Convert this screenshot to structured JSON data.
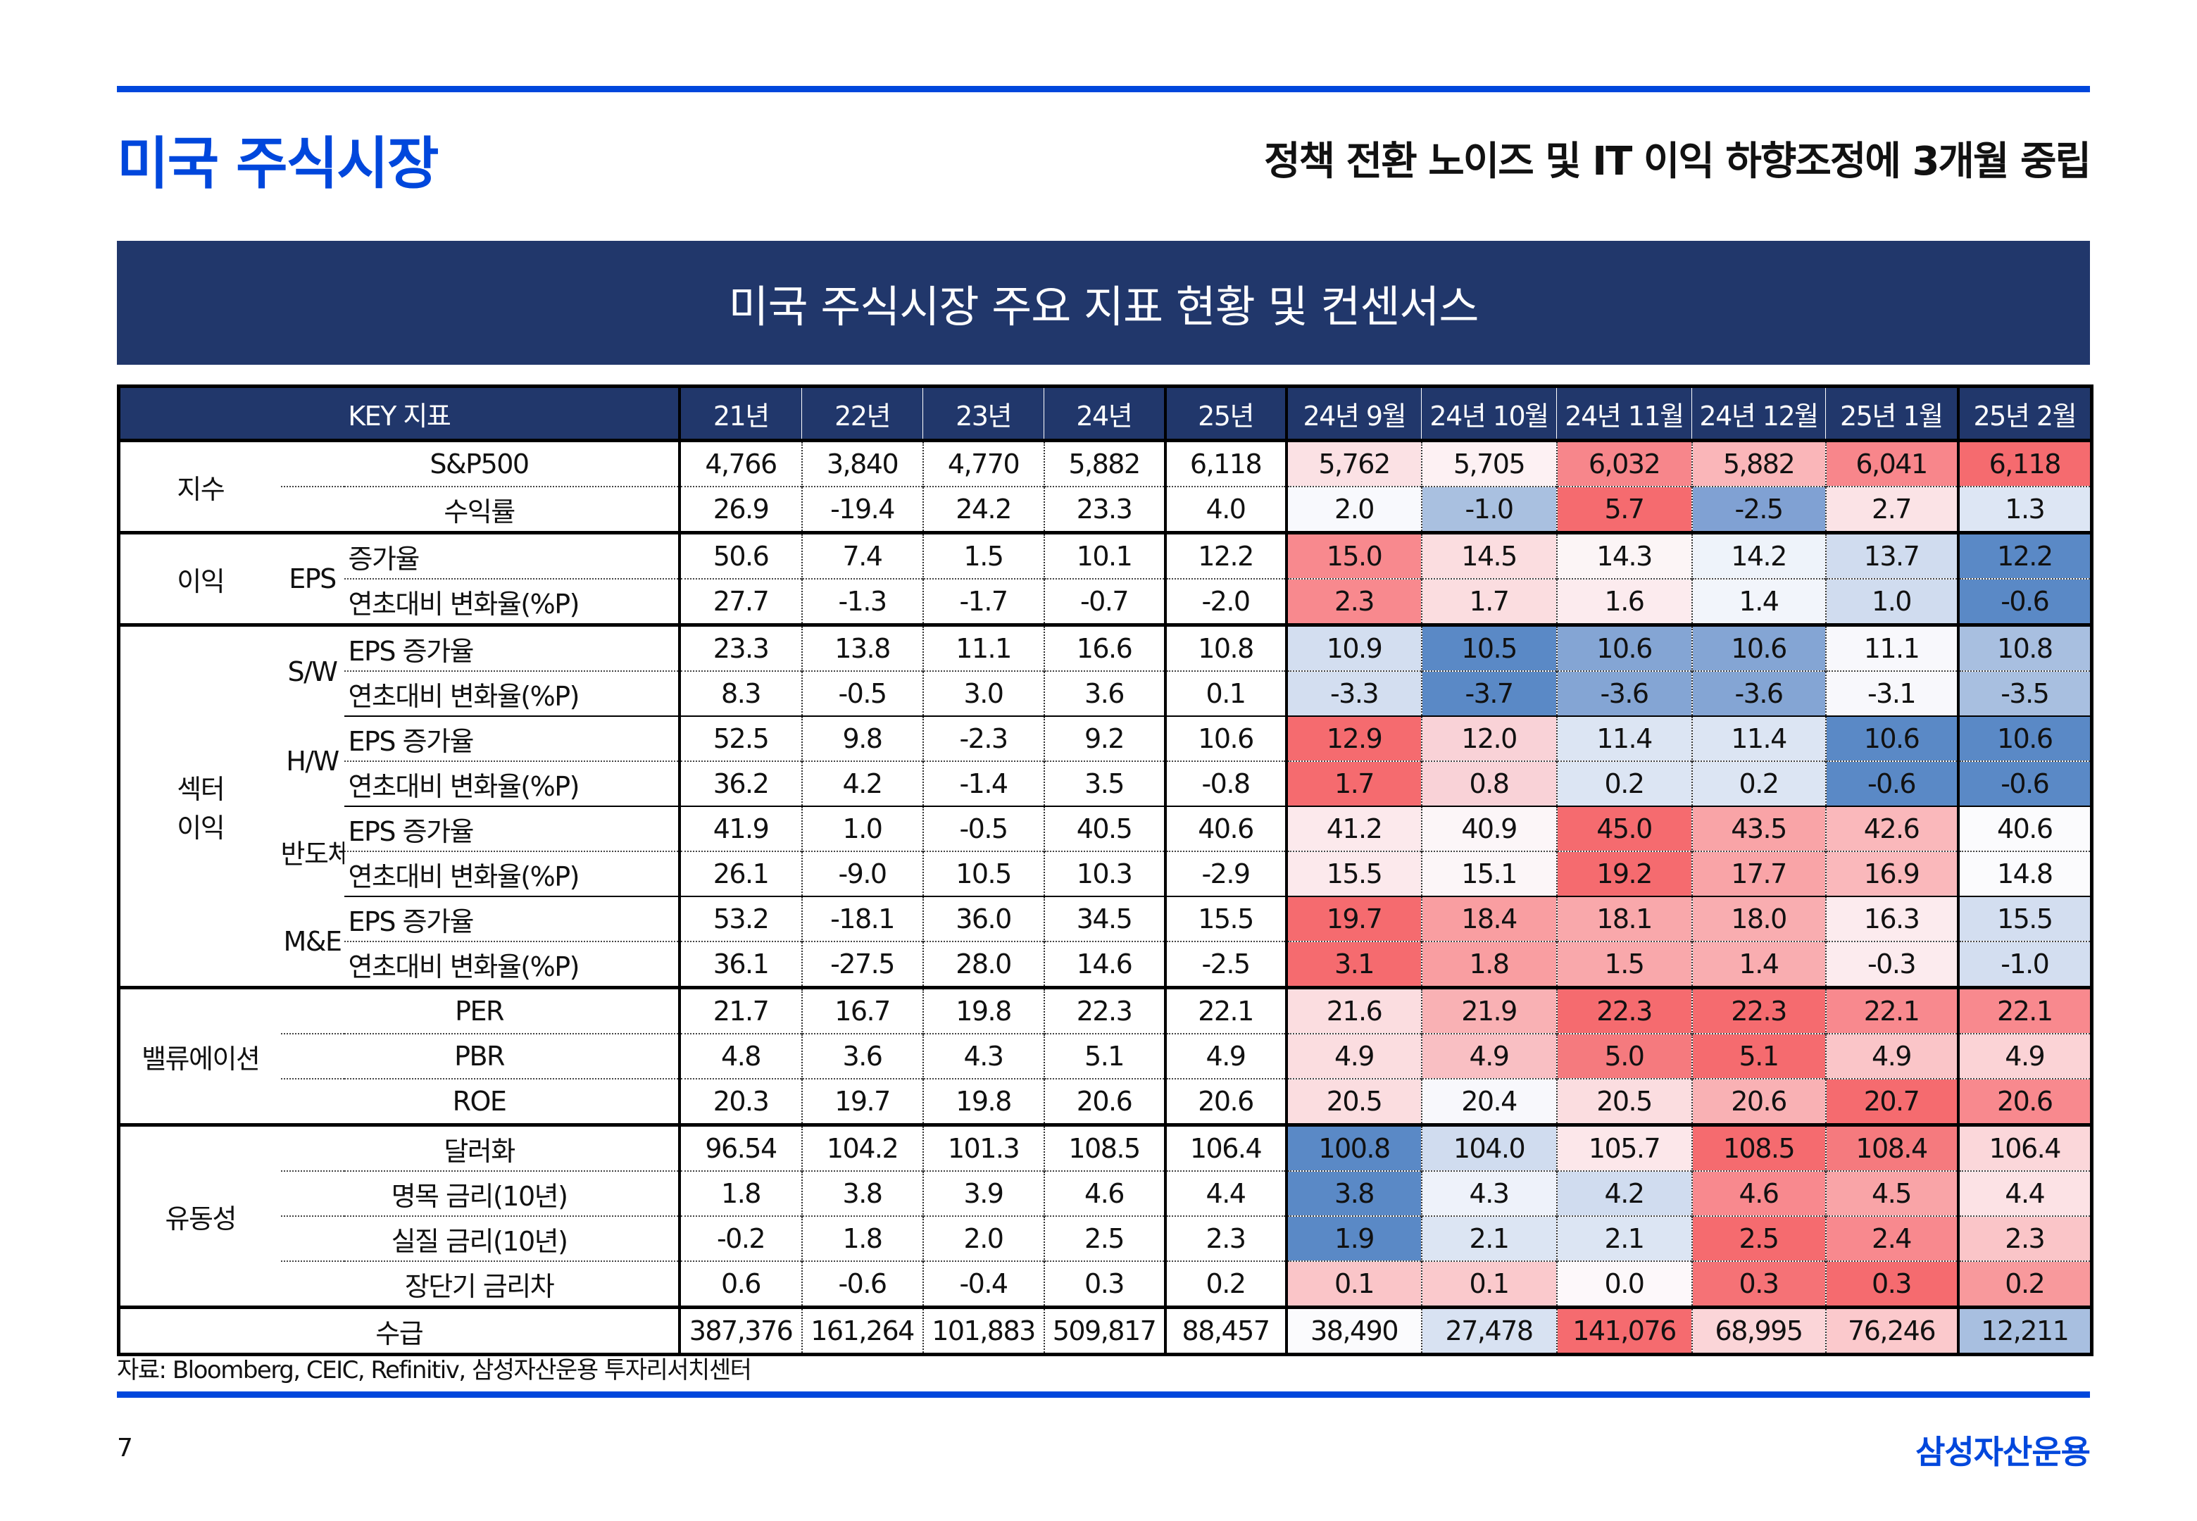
{
  "header": {
    "title": "미국 주식시장",
    "subtitle": "정책 전환 노이즈 및 IT 이익 하향조정에 3개월 중립"
  },
  "band_title": "미국 주식시장 주요 지표 현황 및 컨센서스",
  "table": {
    "header_label": "KEY 지표",
    "columns": [
      "21년",
      "22년",
      "23년",
      "24년",
      "25년",
      "24년 9월",
      "24년 10월",
      "24년 11월",
      "24년 12월",
      "25년 1월",
      "25년 2월"
    ],
    "groups": {
      "index": "지수",
      "earnings": "이익",
      "eps": "EPS",
      "sector1": "섹터",
      "sector2": "이익",
      "sw": "S/W",
      "hw": "H/W",
      "semi": "반도체",
      "me": "M&E",
      "valuation": "밸류에이션",
      "liquidity": "유동성",
      "flow": "수급"
    },
    "rows": [
      {
        "label": "S&P500",
        "values": [
          "4,766",
          "3,840",
          "4,770",
          "5,882",
          "6,118",
          "5,762",
          "5,705",
          "6,032",
          "5,882",
          "6,041",
          "6,118"
        ],
        "colors": [
          "#fbe1e4",
          "#fdf1f3",
          "#f7868b",
          "#fab6b9",
          "#f8868b",
          "#f56b6f"
        ]
      },
      {
        "label": "수익률",
        "values": [
          "26.9",
          "-19.4",
          "24.2",
          "23.3",
          "4.0",
          "2.0",
          "-1.0",
          "5.7",
          "-2.5",
          "2.7",
          "1.3"
        ],
        "colors": [
          "#f8f9fd",
          "#a9c0e0",
          "#f56b6f",
          "#80a1d3",
          "#fbe3e6",
          "#dde6f4"
        ]
      },
      {
        "label": "증가율",
        "values": [
          "50.6",
          "7.4",
          "1.5",
          "10.1",
          "12.2",
          "15.0",
          "14.5",
          "14.3",
          "14.2",
          "13.7",
          "12.2"
        ],
        "colors": [
          "#f8898e",
          "#fbdde0",
          "#fcf5f6",
          "#eef3fa",
          "#d0dcef",
          "#5a89c6"
        ]
      },
      {
        "label": "연초대비 변화율(%P)",
        "values": [
          "27.7",
          "-1.3",
          "-1.7",
          "-0.7",
          "-2.0",
          "2.3",
          "1.7",
          "1.6",
          "1.4",
          "1.0",
          "-0.6"
        ],
        "colors": [
          "#f8898e",
          "#fbdde0",
          "#fcebee",
          "#f2f5fb",
          "#d0dcef",
          "#5a89c6"
        ]
      },
      {
        "label": "EPS 증가율",
        "values": [
          "23.3",
          "13.8",
          "11.1",
          "16.6",
          "10.8",
          "10.9",
          "10.5",
          "10.6",
          "10.6",
          "11.1",
          "10.8"
        ],
        "colors": [
          "#d3def0",
          "#5a89c6",
          "#84a5d4",
          "#84a5d4",
          "#f8f8fc",
          "#a8bfe0"
        ]
      },
      {
        "label": "연초대비 변화율(%P)",
        "values": [
          "8.3",
          "-0.5",
          "3.0",
          "3.6",
          "0.1",
          "-3.3",
          "-3.7",
          "-3.6",
          "-3.6",
          "-3.1",
          "-3.5"
        ],
        "colors": [
          "#d3def0",
          "#5a89c6",
          "#84a5d4",
          "#84a5d4",
          "#f8f8fc",
          "#a8bfe0"
        ]
      },
      {
        "label": "EPS 증가율",
        "values": [
          "52.5",
          "9.8",
          "-2.3",
          "9.2",
          "10.6",
          "12.9",
          "12.0",
          "11.4",
          "11.4",
          "10.6",
          "10.6"
        ],
        "colors": [
          "#f56b6f",
          "#f9d2d7",
          "#dce5f3",
          "#dce5f3",
          "#5a89c6",
          "#5a89c6"
        ]
      },
      {
        "label": "연초대비 변화율(%P)",
        "values": [
          "36.2",
          "4.2",
          "-1.4",
          "3.5",
          "-0.8",
          "1.7",
          "0.8",
          "0.2",
          "0.2",
          "-0.6",
          "-0.6"
        ],
        "colors": [
          "#f56b6f",
          "#f9d2d7",
          "#dce5f3",
          "#dce5f3",
          "#5a89c6",
          "#5a89c6"
        ]
      },
      {
        "label": "EPS 증가율",
        "values": [
          "41.9",
          "1.0",
          "-0.5",
          "40.5",
          "40.6",
          "41.2",
          "40.9",
          "45.0",
          "43.5",
          "42.6",
          "40.6"
        ],
        "colors": [
          "#fce9ec",
          "#fcf6f8",
          "#f56b6f",
          "#f9a4a7",
          "#fab8bb",
          "#fbfbfd"
        ]
      },
      {
        "label": "연초대비 변화율(%P)",
        "values": [
          "26.1",
          "-9.0",
          "10.5",
          "10.3",
          "-2.9",
          "15.5",
          "15.1",
          "19.2",
          "17.7",
          "16.9",
          "14.8"
        ],
        "colors": [
          "#fce9ec",
          "#fcf6f8",
          "#f56b6f",
          "#f9a4a7",
          "#fab8bb",
          "#fbfbfd"
        ]
      },
      {
        "label": "EPS 증가율",
        "values": [
          "53.2",
          "-18.1",
          "36.0",
          "34.5",
          "15.5",
          "19.7",
          "18.4",
          "18.1",
          "18.0",
          "16.3",
          "15.5"
        ],
        "colors": [
          "#f56b6f",
          "#f99ea1",
          "#f9a8ab",
          "#f9adb0",
          "#fcebee",
          "#d3def0"
        ]
      },
      {
        "label": "연초대비 변화율(%P)",
        "values": [
          "36.1",
          "-27.5",
          "28.0",
          "14.6",
          "-2.5",
          "3.1",
          "1.8",
          "1.5",
          "1.4",
          "-0.3",
          "-1.0"
        ],
        "colors": [
          "#f56b6f",
          "#f99ea1",
          "#f9a8ab",
          "#f9adb0",
          "#fcebee",
          "#d3def0"
        ]
      },
      {
        "label": "PER",
        "values": [
          "21.7",
          "16.7",
          "19.8",
          "22.3",
          "22.1",
          "21.6",
          "21.9",
          "22.3",
          "22.3",
          "22.1",
          "22.1"
        ],
        "colors": [
          "#fbdde0",
          "#f9b1b4",
          "#f56b6f",
          "#f56b6f",
          "#f8898e",
          "#f8898e"
        ]
      },
      {
        "label": "PBR",
        "values": [
          "4.8",
          "3.6",
          "4.3",
          "5.1",
          "4.9",
          "4.9",
          "4.9",
          "5.0",
          "5.1",
          "4.9",
          "4.9"
        ],
        "colors": [
          "#fbdde0",
          "#f9bfc3",
          "#f57a7e",
          "#f56b6f",
          "#fac5c8",
          "#fbd3d6"
        ]
      },
      {
        "label": "ROE",
        "values": [
          "20.3",
          "19.7",
          "19.8",
          "20.6",
          "20.6",
          "20.5",
          "20.4",
          "20.5",
          "20.6",
          "20.7",
          "20.6"
        ],
        "colors": [
          "#fbdde0",
          "#f8f8fc",
          "#fbdde0",
          "#f9b1b4",
          "#f56b6f",
          "#f8898e"
        ]
      },
      {
        "label": "달러화",
        "values": [
          "96.54",
          "104.2",
          "101.3",
          "108.5",
          "106.4",
          "100.8",
          "104.0",
          "105.7",
          "108.5",
          "108.4",
          "106.4"
        ],
        "colors": [
          "#5a89c6",
          "#d0dcef",
          "#fce7ea",
          "#f56b6f",
          "#f57a7e",
          "#fbd7da"
        ]
      },
      {
        "label": "명목 금리(10년)",
        "values": [
          "1.8",
          "3.8",
          "3.9",
          "4.6",
          "4.4",
          "3.8",
          "4.3",
          "4.2",
          "4.6",
          "4.5",
          "4.4"
        ],
        "colors": [
          "#5a89c6",
          "#eef2fa",
          "#d0dcef",
          "#f8898e",
          "#f9a4a7",
          "#fce2e5"
        ]
      },
      {
        "label": "실질 금리(10년)",
        "values": [
          "-0.2",
          "1.8",
          "2.0",
          "2.5",
          "2.3",
          "1.9",
          "2.1",
          "2.1",
          "2.5",
          "2.4",
          "2.3"
        ],
        "colors": [
          "#5a89c6",
          "#dce5f3",
          "#dce5f3",
          "#f56b6f",
          "#f8898e",
          "#fac5c8"
        ]
      },
      {
        "label": "장단기 금리차",
        "values": [
          "0.6",
          "-0.6",
          "-0.4",
          "0.3",
          "0.2",
          "0.1",
          "0.1",
          "0.0",
          "0.3",
          "0.3",
          "0.2"
        ],
        "colors": [
          "#fac5c8",
          "#fac9cc",
          "#fdf8fa",
          "#f57276",
          "#f56b6f",
          "#f8999c"
        ]
      },
      {
        "label": "수급",
        "values": [
          "387,376",
          "161,264",
          "101,883",
          "509,817",
          "88,457",
          "38,490",
          "27,478",
          "141,076",
          "68,995",
          "76,246",
          "12,211"
        ],
        "colors": [
          "#fbfbfd",
          "#d8e2f2",
          "#f56b6f",
          "#fbd5d8",
          "#fbc9cc",
          "#a8bfe0"
        ]
      }
    ]
  },
  "source": "자료: Bloomberg, CEIC, Refinitiv, 삼성자산운용 투자리서치센터",
  "page_number": "7",
  "brand": "삼성자산운용",
  "colors": {
    "accent": "#0047dc",
    "navy": "#21376b",
    "heat_red": "#f56b6f",
    "heat_blue": "#5a89c6"
  }
}
